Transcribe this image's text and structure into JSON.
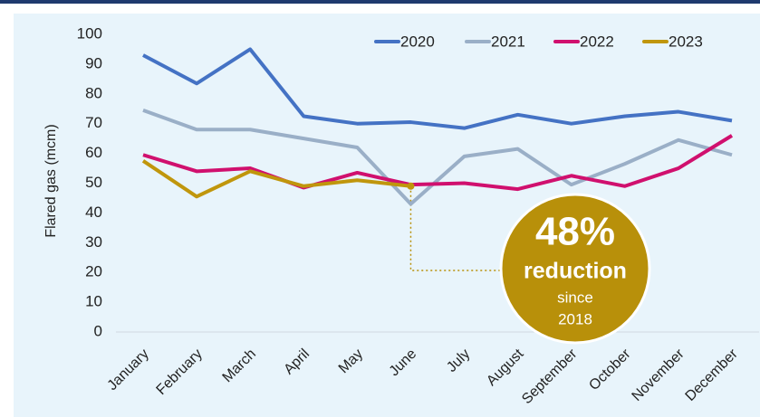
{
  "chart_data": {
    "type": "line",
    "y_label": "Flared gas (mcm)",
    "categories": [
      "January",
      "February",
      "March",
      "April",
      "May",
      "June",
      "July",
      "August",
      "September",
      "October",
      "November",
      "December"
    ],
    "series": [
      {
        "name": "2020",
        "color": "#4472c4",
        "values": [
          93,
          83.5,
          95,
          72.5,
          70,
          70.5,
          68.5,
          73,
          70,
          72.5,
          74,
          71
        ]
      },
      {
        "name": "2021",
        "color": "#9aafc7",
        "values": [
          74.5,
          68,
          68,
          65,
          62,
          43,
          59,
          61.5,
          49.5,
          56.5,
          64.5,
          59.5
        ]
      },
      {
        "name": "2022",
        "color": "#d0106e",
        "values": [
          59.5,
          54,
          55,
          48.5,
          53.5,
          49.5,
          50,
          48,
          52.5,
          49,
          55,
          66
        ]
      },
      {
        "name": "2023",
        "color": "#c0960c",
        "values": [
          57.5,
          45.5,
          54,
          49,
          51,
          49,
          null,
          null,
          null,
          null,
          null,
          null
        ]
      }
    ],
    "ylim": [
      0,
      100
    ],
    "yticks": [
      0,
      10,
      20,
      30,
      40,
      50,
      60,
      70,
      80,
      90,
      100
    ],
    "grid": false,
    "legend": "top-right",
    "annotation": {
      "headline": "48%",
      "text": "reduction",
      "lines": [
        "since",
        "2018"
      ],
      "color": "#b8900a"
    }
  }
}
